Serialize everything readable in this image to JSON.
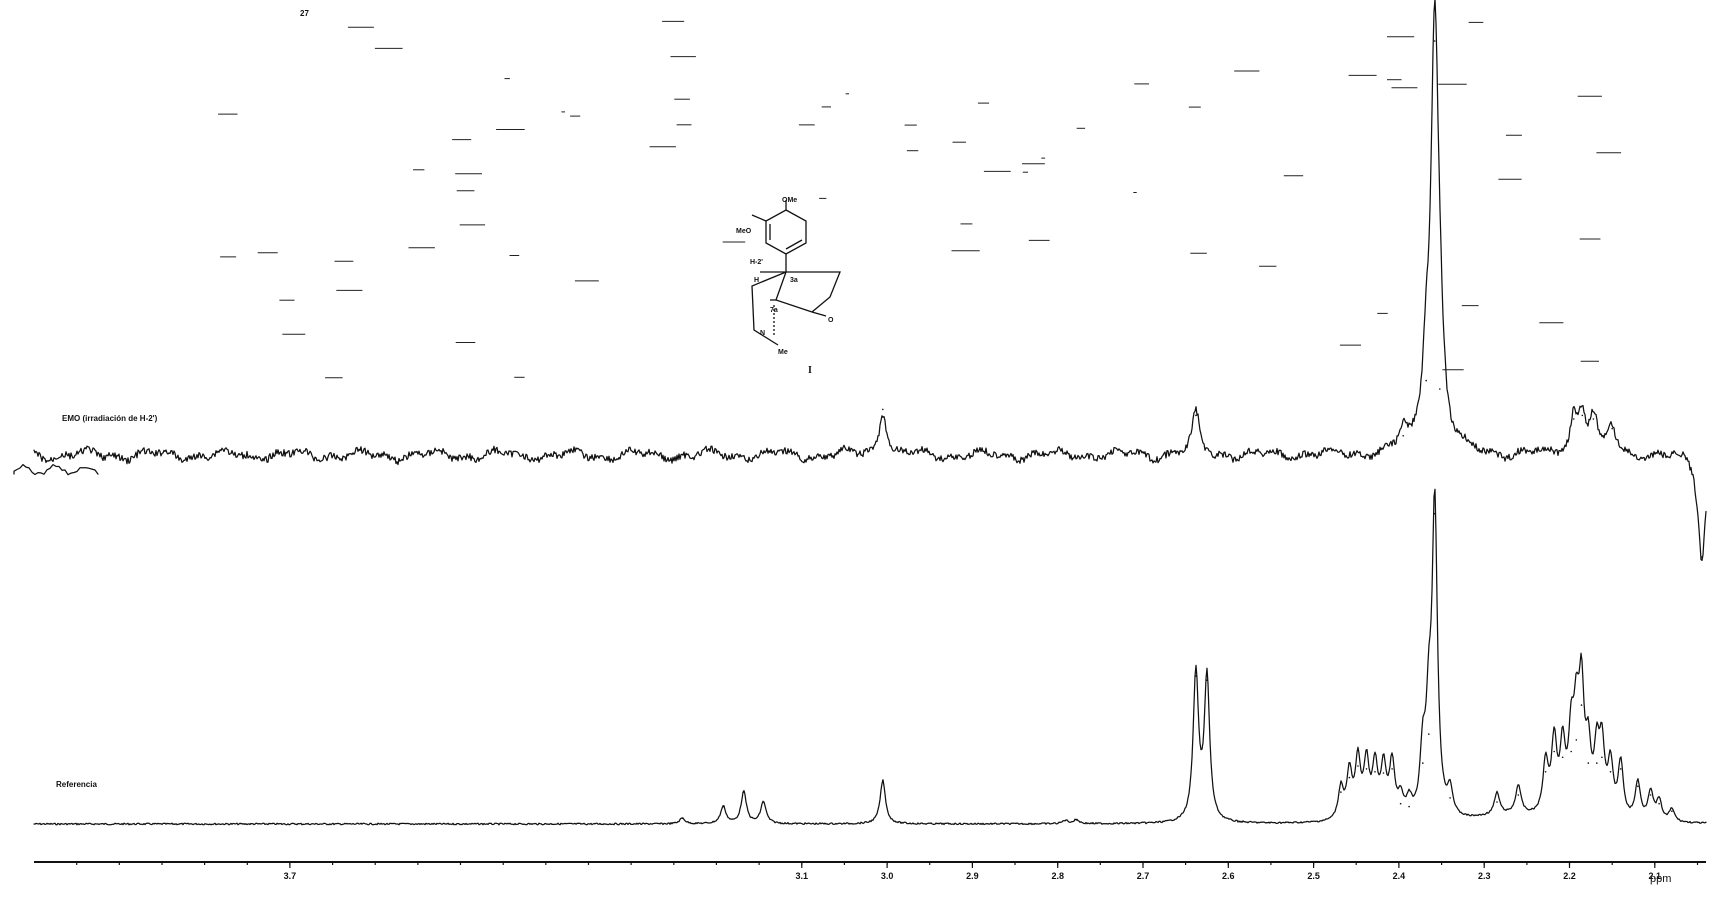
{
  "chart_data": {
    "type": "line",
    "title": "",
    "xlabel": "ppm",
    "ylabel": "",
    "xlim": [
      4.0,
      2.04
    ],
    "x_reversed": true,
    "grid": false,
    "tick_labels": [
      "3.7",
      "3.1",
      "3.0",
      "2.9",
      "2.8",
      "2.7",
      "2.6",
      "2.5",
      "2.4",
      "2.3",
      "2.2",
      "2.1"
    ],
    "tick_values": [
      3.7,
      3.1,
      3.0,
      2.9,
      2.8,
      2.7,
      2.6,
      2.5,
      2.4,
      2.3,
      2.2,
      2.1
    ],
    "series": [
      {
        "name": "EMO (irradiación de H-2')",
        "kind": "difference",
        "peaks": [
          {
            "ppm": 3.005,
            "height": 0.38
          },
          {
            "ppm": 2.638,
            "height": 0.33
          },
          {
            "ppm": 2.395,
            "height": 0.16
          },
          {
            "ppm": 2.368,
            "height": 0.62
          },
          {
            "ppm": 2.358,
            "height": 3.45
          },
          {
            "ppm": 2.352,
            "height": 0.55
          },
          {
            "ppm": 2.195,
            "height": 0.3
          },
          {
            "ppm": 2.185,
            "height": 0.33
          },
          {
            "ppm": 2.172,
            "height": 0.3
          },
          {
            "ppm": 2.15,
            "height": 0.22
          },
          {
            "ppm": 2.045,
            "height": -0.85
          }
        ]
      },
      {
        "name": "Referencia",
        "kind": "reference",
        "peaks": [
          {
            "ppm": 3.24,
            "height": 0.1
          },
          {
            "ppm": 3.192,
            "height": 0.3
          },
          {
            "ppm": 3.168,
            "height": 0.55
          },
          {
            "ppm": 3.145,
            "height": 0.38
          },
          {
            "ppm": 3.005,
            "height": 0.75
          },
          {
            "ppm": 2.791,
            "height": 0.06
          },
          {
            "ppm": 2.778,
            "height": 0.07
          },
          {
            "ppm": 2.638,
            "height": 2.55
          },
          {
            "ppm": 2.625,
            "height": 2.48
          },
          {
            "ppm": 2.468,
            "height": 0.55
          },
          {
            "ppm": 2.458,
            "height": 0.8
          },
          {
            "ppm": 2.448,
            "height": 1.0
          },
          {
            "ppm": 2.438,
            "height": 0.95
          },
          {
            "ppm": 2.428,
            "height": 0.9
          },
          {
            "ppm": 2.418,
            "height": 0.88
          },
          {
            "ppm": 2.408,
            "height": 0.95
          },
          {
            "ppm": 2.398,
            "height": 0.35
          },
          {
            "ppm": 2.388,
            "height": 0.3
          },
          {
            "ppm": 2.372,
            "height": 1.05
          },
          {
            "ppm": 2.365,
            "height": 1.55
          },
          {
            "ppm": 2.358,
            "height": 5.35
          },
          {
            "ppm": 2.34,
            "height": 0.45
          },
          {
            "ppm": 2.285,
            "height": 0.38
          },
          {
            "ppm": 2.26,
            "height": 0.5
          },
          {
            "ppm": 2.228,
            "height": 0.9
          },
          {
            "ppm": 2.218,
            "height": 1.25
          },
          {
            "ppm": 2.208,
            "height": 1.15
          },
          {
            "ppm": 2.198,
            "height": 1.25
          },
          {
            "ppm": 2.192,
            "height": 1.45
          },
          {
            "ppm": 2.186,
            "height": 2.05
          },
          {
            "ppm": 2.178,
            "height": 1.05
          },
          {
            "ppm": 2.168,
            "height": 1.05
          },
          {
            "ppm": 2.162,
            "height": 1.15
          },
          {
            "ppm": 2.152,
            "height": 0.9
          },
          {
            "ppm": 2.14,
            "height": 0.95
          },
          {
            "ppm": 2.12,
            "height": 0.65
          },
          {
            "ppm": 2.105,
            "height": 0.5
          },
          {
            "ppm": 2.095,
            "height": 0.35
          },
          {
            "ppm": 2.08,
            "height": 0.22
          }
        ]
      }
    ]
  },
  "structure": {
    "labels": [
      "OMe",
      "MeO",
      "H-2'",
      "3a",
      "7a",
      "H",
      "N",
      "Me",
      "O"
    ],
    "compound": "I"
  },
  "header_scribble": "27"
}
